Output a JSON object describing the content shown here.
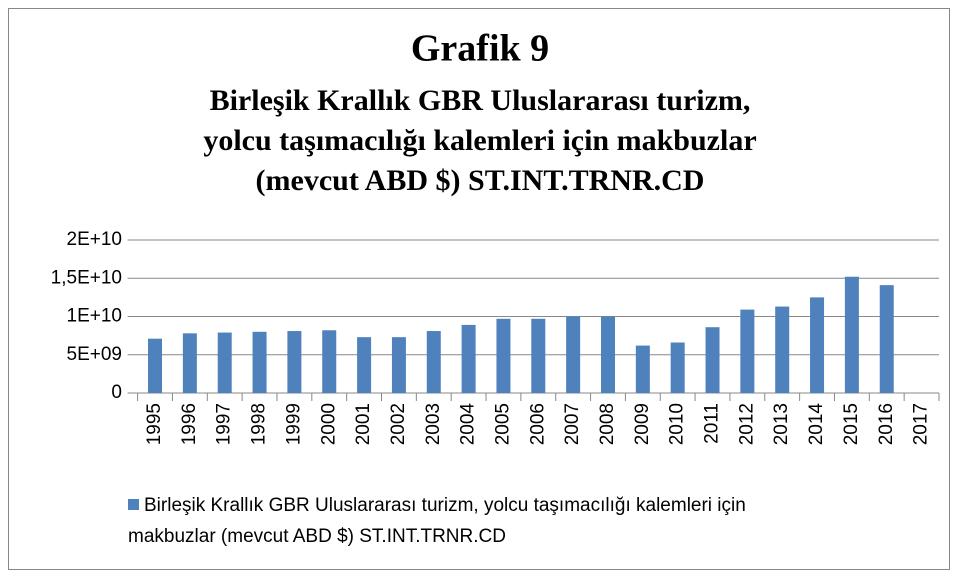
{
  "chart_data": {
    "type": "bar",
    "title": "Grafik 9",
    "subtitle": [
      "Birleşik Krallık GBR Uluslararası turizm,",
      "yolcu taşımacılığı kalemleri için makbuzlar",
      "(mevcut ABD $) ST.INT.TRNR.CD"
    ],
    "categories": [
      "1995",
      "1996",
      "1997",
      "1998",
      "1999",
      "2000",
      "2001",
      "2002",
      "2003",
      "2004",
      "2005",
      "2006",
      "2007",
      "2008",
      "2009",
      "2010",
      "2011",
      "2012",
      "2013",
      "2014",
      "2015",
      "2016",
      "2017"
    ],
    "series": [
      {
        "name": "Birleşik Krallık GBR Uluslararası turizm, yolcu taşımacılığı kalemleri için makbuzlar (mevcut ABD $) ST.INT.TRNR.CD",
        "color": "#4f81bd",
        "values": [
          7100000000,
          7800000000,
          7900000000,
          8000000000,
          8100000000,
          8200000000,
          7300000000,
          7300000000,
          8100000000,
          8900000000,
          9700000000,
          9700000000,
          10000000000,
          10000000000,
          6200000000,
          6600000000,
          8600000000,
          10900000000,
          11300000000,
          12500000000,
          15200000000,
          14100000000,
          null
        ]
      }
    ],
    "ylim": [
      0,
      20000000000
    ],
    "yticks": [
      0,
      {
        "value": 5000000000,
        "label": "5E+09"
      },
      {
        "value": 10000000000,
        "label": "1E+10"
      },
      {
        "value": 15000000000,
        "label": "1,5E+10"
      },
      {
        "value": 20000000000,
        "label": "2E+10"
      }
    ],
    "grid": true,
    "legend": "bottom"
  }
}
